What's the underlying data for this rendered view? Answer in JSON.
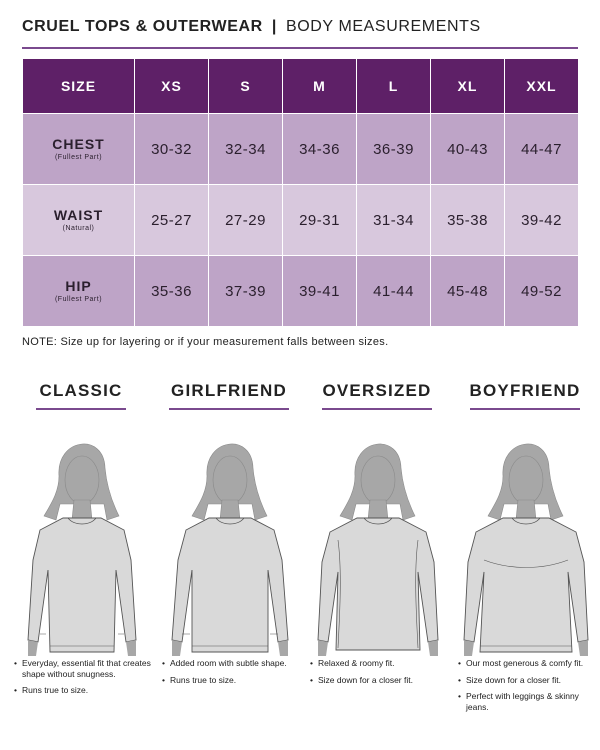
{
  "header": {
    "brand": "CRUEL TOPS & OUTERWEAR",
    "separator": "|",
    "subtitle": "BODY MEASUREMENTS"
  },
  "table": {
    "size_label": "SIZE",
    "sizes": [
      "XS",
      "S",
      "M",
      "L",
      "XL",
      "XXL"
    ],
    "rows": [
      {
        "label": "CHEST",
        "sub": "(Fullest Part)",
        "values": [
          "30-32",
          "32-34",
          "34-36",
          "36-39",
          "40-43",
          "44-47"
        ]
      },
      {
        "label": "WAIST",
        "sub": "(Natural)",
        "values": [
          "25-27",
          "27-29",
          "29-31",
          "31-34",
          "35-38",
          "39-42"
        ]
      },
      {
        "label": "HIP",
        "sub": "(Fullest Part)",
        "values": [
          "35-36",
          "37-39",
          "39-41",
          "41-44",
          "45-48",
          "49-52"
        ]
      }
    ]
  },
  "note": "NOTE: Size up for layering or if your measurement falls between sizes.",
  "fits": [
    {
      "title": "CLASSIC",
      "notes": [
        "Everyday, essential fit that creates shape without snugness.",
        "Runs true to size."
      ]
    },
    {
      "title": "GIRLFRIEND",
      "notes": [
        "Added room with subtle shape.",
        "Runs true to size."
      ]
    },
    {
      "title": "OVERSIZED",
      "notes": [
        "Relaxed & roomy fit.",
        "Size down for a closer fit."
      ]
    },
    {
      "title": "BOYFRIEND",
      "notes": [
        "Our most generous & comfy fit.",
        "Size down for a closer fit.",
        "Perfect with leggings & skinny jeans."
      ]
    }
  ],
  "colors": {
    "header_purple": "#5e2067",
    "row_dark": "#bea4c7",
    "row_light": "#d8c8dd",
    "accent_rule": "#7a4a8e"
  }
}
